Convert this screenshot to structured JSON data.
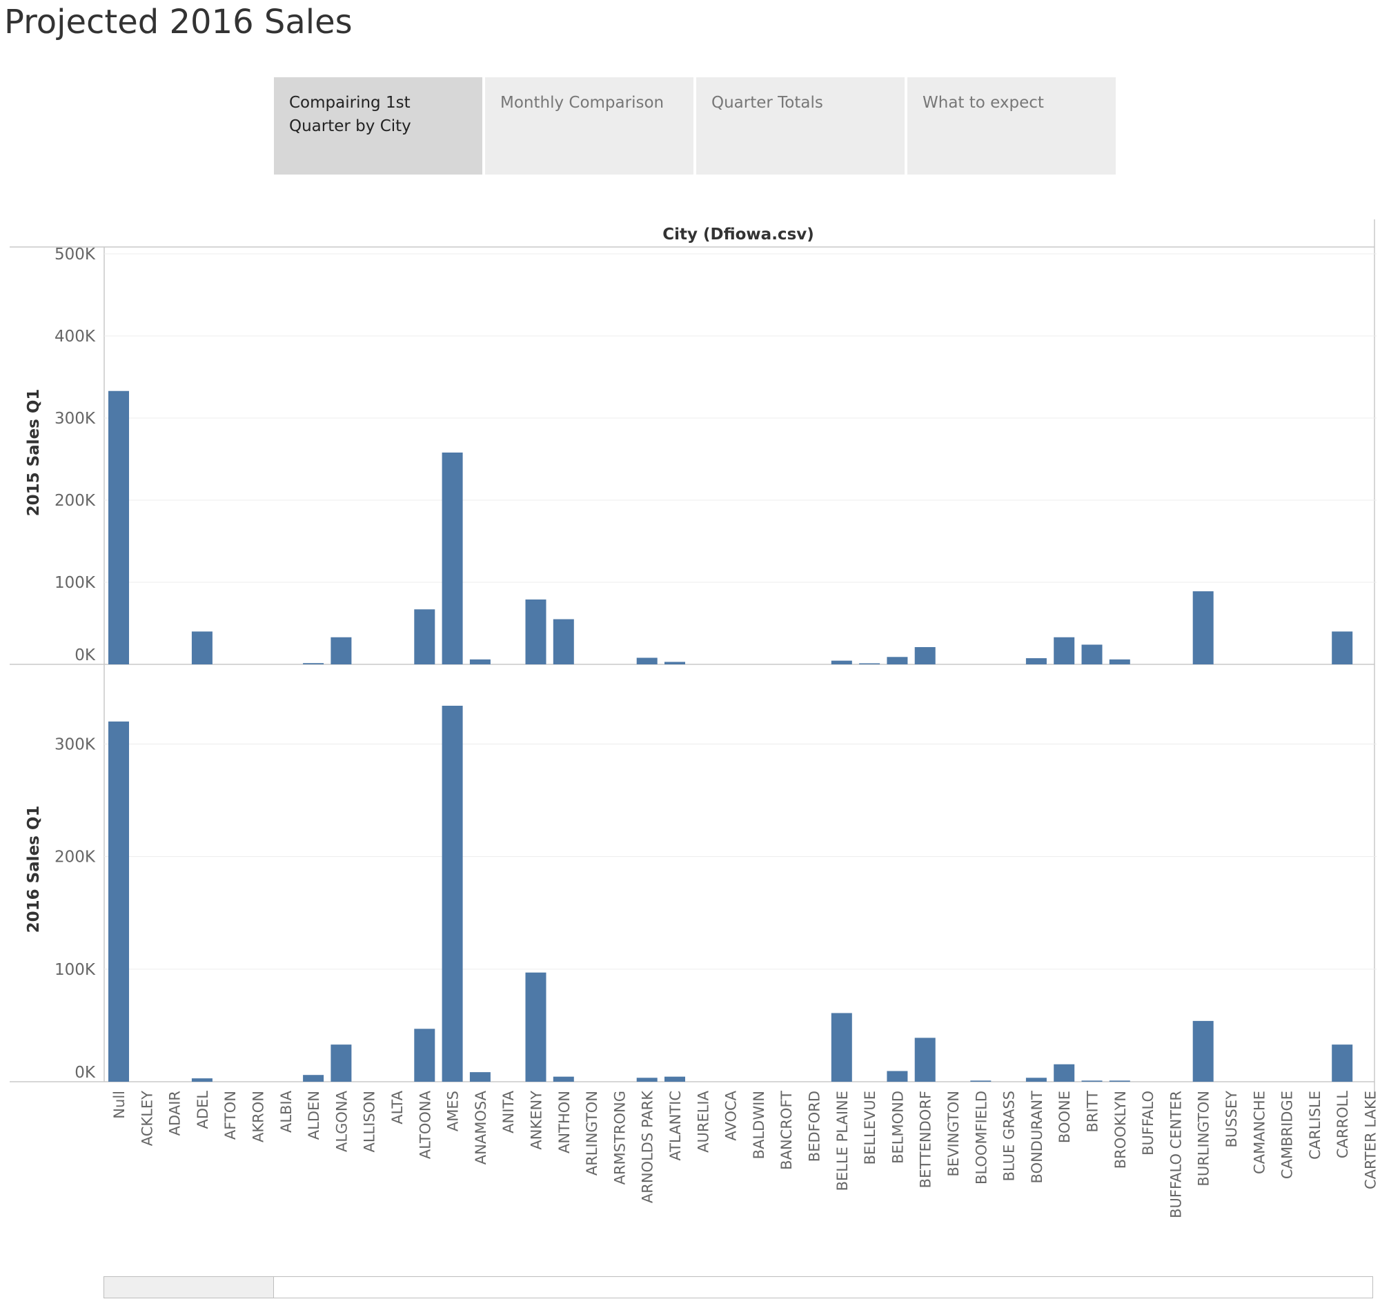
{
  "page": {
    "title": "Projected 2016 Sales"
  },
  "tabs": [
    {
      "label": "Compairing 1st\nQuarter by City",
      "active": true
    },
    {
      "label": "Monthly Comparison",
      "active": false
    },
    {
      "label": "Quarter Totals",
      "active": false
    },
    {
      "label": "What to expect",
      "active": false
    }
  ],
  "colors": {
    "bar": "#4e79a7",
    "grid": "#ececec",
    "axis": "#c8c8c8",
    "text": "#666666"
  },
  "chart_data": {
    "type": "bar",
    "title": "City (Dfiowa.csv)",
    "xlabel": "",
    "categories": [
      "Null",
      "ACKLEY",
      "ADAIR",
      "ADEL",
      "AFTON",
      "AKRON",
      "ALBIA",
      "ALDEN",
      "ALGONA",
      "ALLISON",
      "ALTA",
      "ALTOONA",
      "AMES",
      "ANAMOSA",
      "ANITA",
      "ANKENY",
      "ANTHON",
      "ARLINGTON",
      "ARMSTRONG",
      "ARNOLDS PARK",
      "ATLANTIC",
      "AURELIA",
      "AVOCA",
      "BALDWIN",
      "BANCROFT",
      "BEDFORD",
      "BELLE PLAINE",
      "BELLEVUE",
      "BELMOND",
      "BETTENDORF",
      "BEVINGTON",
      "BLOOMFIELD",
      "BLUE GRASS",
      "BONDURANT",
      "BOONE",
      "BRITT",
      "BROOKLYN",
      "BUFFALO",
      "BUFFALO CENTER",
      "BURLINGTON",
      "BUSSEY",
      "CAMANCHE",
      "CAMBRIDGE",
      "CARLISLE",
      "CARROLL",
      "CARTER LAKE"
    ],
    "series": [
      {
        "name": "2015 Sales Q1",
        "values": [
          333000,
          0,
          0,
          40000,
          0,
          0,
          0,
          1500,
          33000,
          0,
          0,
          67000,
          258000,
          6000,
          0,
          79000,
          55000,
          0,
          0,
          8000,
          3000,
          0,
          0,
          0,
          0,
          0,
          4500,
          1000,
          9000,
          21000,
          0,
          0,
          0,
          7500,
          33000,
          24000,
          6000,
          0,
          0,
          89000,
          0,
          0,
          0,
          0,
          40000,
          0
        ],
        "ylim": [
          0,
          500000
        ],
        "ticks": [
          0,
          100000,
          200000,
          300000,
          400000,
          500000
        ],
        "tick_labels": [
          "0K",
          "100K",
          "200K",
          "300K",
          "400K",
          "500K"
        ]
      },
      {
        "name": "2016 Sales Q1",
        "values": [
          320000,
          0,
          0,
          3000,
          0,
          0,
          0,
          6000,
          33000,
          0,
          0,
          47000,
          334000,
          8500,
          0,
          97000,
          4500,
          0,
          0,
          3500,
          4500,
          0,
          0,
          0,
          0,
          0,
          61000,
          0,
          9500,
          39000,
          0,
          1000,
          0,
          3500,
          15500,
          1000,
          1000,
          0,
          0,
          54000,
          0,
          0,
          0,
          0,
          33000,
          0
        ],
        "ylim": [
          0,
          334000
        ],
        "ticks": [
          0,
          100000,
          200000,
          300000
        ],
        "tick_labels": [
          "0K",
          "100K",
          "200K",
          "300K"
        ]
      }
    ],
    "grid": true,
    "legend": "none"
  }
}
